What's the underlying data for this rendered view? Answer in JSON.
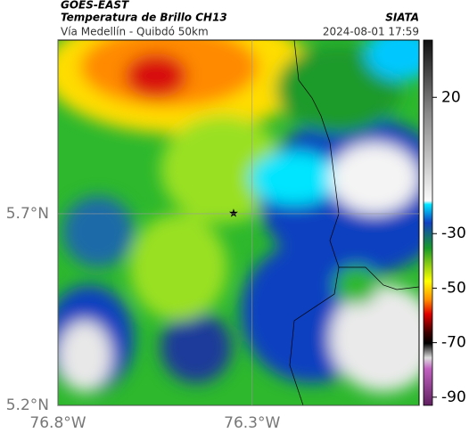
{
  "header": {
    "source": "GOES-EAST",
    "title": "Temperatura de Brillo CH13",
    "route": "Vía Medellín - Quibdó 50km",
    "agency": "SIATA",
    "datetime": "2024-08-01 17:59"
  },
  "map": {
    "xlim": [
      -76.8,
      -75.87
    ],
    "ylim": [
      5.2,
      6.153
    ],
    "xticks": [
      {
        "value": -76.8,
        "label": "76.8°W"
      },
      {
        "value": -76.3,
        "label": "76.3°W"
      }
    ],
    "yticks": [
      {
        "value": 5.7,
        "label": "5.7°N"
      },
      {
        "value": 5.2,
        "label": "5.2°N"
      }
    ],
    "grid": true
  },
  "colorbar": {
    "lim": [
      -93,
      41
    ],
    "ticks": [
      20,
      -30,
      -50,
      -70,
      -90
    ]
  }
}
